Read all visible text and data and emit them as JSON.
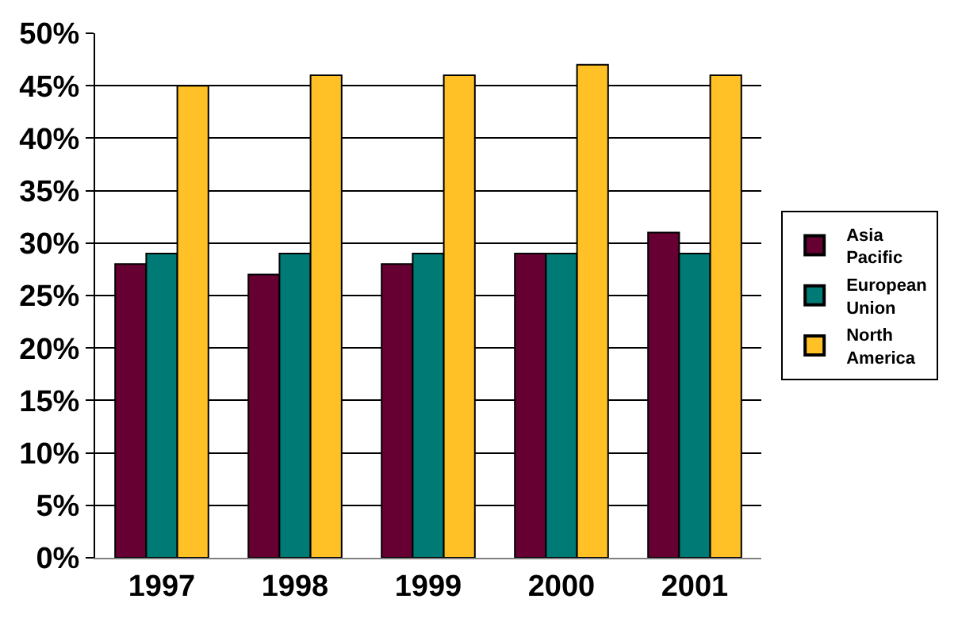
{
  "chart_data": {
    "type": "bar",
    "categories": [
      "1997",
      "1998",
      "1999",
      "2000",
      "2001"
    ],
    "series": [
      {
        "name": "Asia Pacific",
        "color": "#660033",
        "values": [
          28,
          27,
          28,
          29,
          31
        ]
      },
      {
        "name": "European Union",
        "color": "#007a74",
        "values": [
          29,
          29,
          29,
          29,
          29
        ]
      },
      {
        "name": "North America",
        "color": "#ffc125",
        "values": [
          45,
          46,
          46,
          47,
          46
        ]
      }
    ],
    "ylim": [
      0,
      50
    ],
    "yticks": [
      {
        "value": 0,
        "label": "0%"
      },
      {
        "value": 5,
        "label": "5%"
      },
      {
        "value": 10,
        "label": "10%"
      },
      {
        "value": 15,
        "label": "15%"
      },
      {
        "value": 20,
        "label": "20%"
      },
      {
        "value": 25,
        "label": "25%"
      },
      {
        "value": 30,
        "label": "30%"
      },
      {
        "value": 35,
        "label": "35%"
      },
      {
        "value": 40,
        "label": "40%"
      },
      {
        "value": 45,
        "label": "45%"
      },
      {
        "value": 50,
        "label": "50%"
      }
    ],
    "grid": "y",
    "legend": "right"
  }
}
